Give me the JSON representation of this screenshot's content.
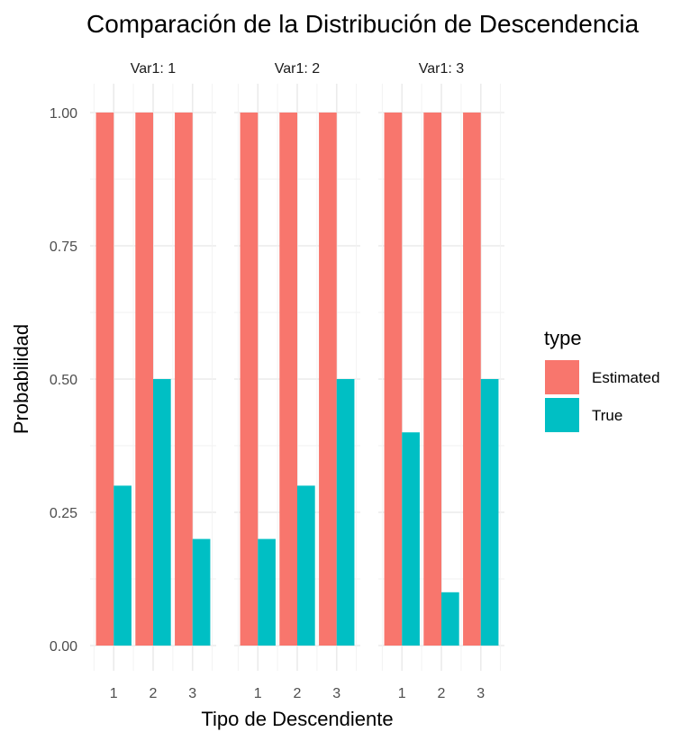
{
  "chart_data": {
    "type": "bar",
    "title": "Comparación de la Distribución de Descendencia",
    "xlabel": "Tipo de Descendiente",
    "ylabel": "Probabilidad",
    "ylim": [
      0,
      1.0
    ],
    "yticks": [
      "0.00",
      "0.25",
      "0.50",
      "0.75",
      "1.00"
    ],
    "categories": [
      "1",
      "2",
      "3"
    ],
    "facets": [
      {
        "label": "Var1: 1",
        "series": [
          {
            "name": "Estimated",
            "values": [
              1.0,
              1.0,
              1.0
            ]
          },
          {
            "name": "True",
            "values": [
              0.3,
              0.5,
              0.2
            ]
          }
        ]
      },
      {
        "label": "Var1: 2",
        "series": [
          {
            "name": "Estimated",
            "values": [
              1.0,
              1.0,
              1.0
            ]
          },
          {
            "name": "True",
            "values": [
              0.2,
              0.3,
              0.5
            ]
          }
        ]
      },
      {
        "label": "Var1: 3",
        "series": [
          {
            "name": "Estimated",
            "values": [
              1.0,
              1.0,
              1.0
            ]
          },
          {
            "name": "True",
            "values": [
              0.4,
              0.1,
              0.5
            ]
          }
        ]
      }
    ],
    "legend": {
      "title": "type",
      "placement": "right",
      "entries": [
        {
          "name": "Estimated",
          "color": "#F8766D"
        },
        {
          "name": "True",
          "color": "#00BFC4"
        }
      ]
    },
    "grid": true
  }
}
